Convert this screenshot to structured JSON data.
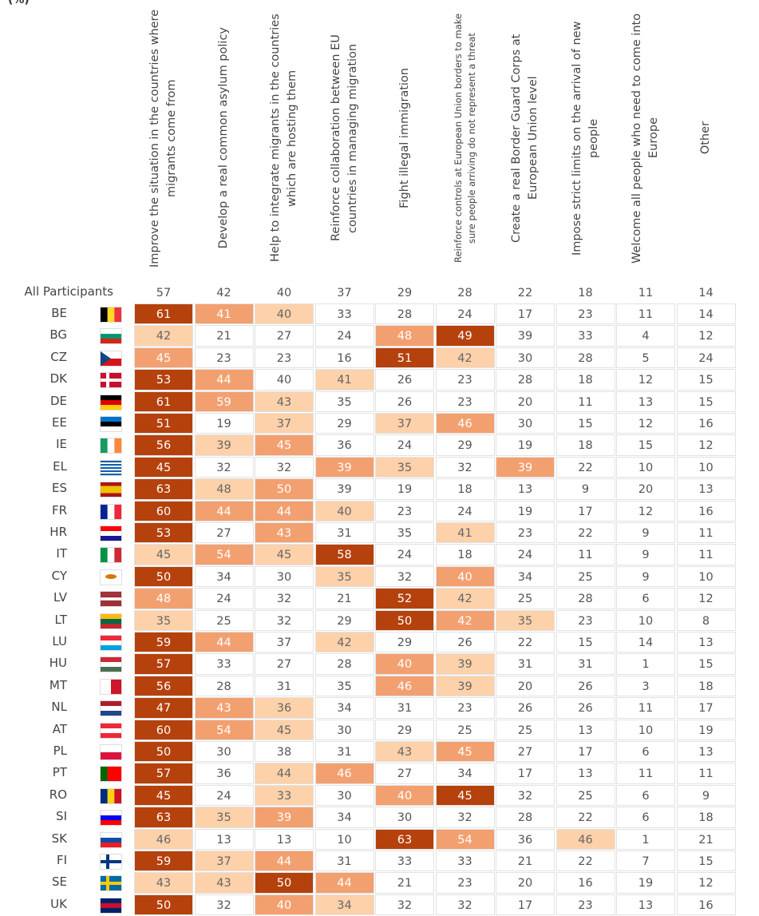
{
  "table": {
    "unit": "(%)",
    "columns": [
      "Improve the situation in the countries where migrants come from",
      "Develop a real common asylum policy",
      "Help to integrate migrants in the countries which are hosting them",
      "Reinforce collaboration between EU countries in managing migration",
      "Fight illegal immigration",
      "Reinforce controls at European Union borders to make sure people arriving do not represent a threat",
      "Create a real Border Guard Corps at European Union level",
      "Impose strict limits on the arrival of new people",
      "Welcome all people who need to come into Europe",
      "Other"
    ],
    "overall": {
      "label": "All Participants",
      "values": [
        57,
        42,
        40,
        37,
        29,
        28,
        22,
        18,
        11,
        14
      ]
    },
    "shades": [
      "#b5410c",
      "#f3a070",
      "#fdd1aa"
    ],
    "rows": [
      {
        "label": "BE",
        "values": [
          61,
          41,
          40,
          33,
          28,
          24,
          17,
          23,
          11,
          14
        ]
      },
      {
        "label": "BG",
        "values": [
          42,
          21,
          27,
          24,
          48,
          49,
          39,
          33,
          4,
          12
        ]
      },
      {
        "label": "CZ",
        "values": [
          45,
          23,
          23,
          16,
          51,
          42,
          30,
          28,
          5,
          24
        ]
      },
      {
        "label": "DK",
        "values": [
          53,
          44,
          40,
          41,
          26,
          23,
          28,
          18,
          12,
          15
        ]
      },
      {
        "label": "DE",
        "values": [
          61,
          59,
          43,
          35,
          26,
          23,
          20,
          11,
          13,
          15
        ]
      },
      {
        "label": "EE",
        "values": [
          51,
          19,
          37,
          29,
          37,
          46,
          30,
          15,
          12,
          16
        ]
      },
      {
        "label": "IE",
        "values": [
          56,
          39,
          45,
          36,
          24,
          29,
          19,
          18,
          15,
          12
        ]
      },
      {
        "label": "EL",
        "values": [
          45,
          32,
          32,
          39,
          35,
          32,
          39,
          22,
          10,
          10
        ]
      },
      {
        "label": "ES",
        "values": [
          63,
          48,
          50,
          39,
          19,
          18,
          13,
          9,
          20,
          13
        ]
      },
      {
        "label": "FR",
        "values": [
          60,
          44,
          44,
          40,
          23,
          24,
          19,
          17,
          12,
          16
        ]
      },
      {
        "label": "HR",
        "values": [
          53,
          27,
          43,
          31,
          35,
          41,
          23,
          22,
          9,
          11
        ]
      },
      {
        "label": "IT",
        "values": [
          45,
          54,
          45,
          58,
          24,
          18,
          24,
          11,
          9,
          11
        ]
      },
      {
        "label": "CY",
        "values": [
          50,
          34,
          30,
          35,
          32,
          40,
          34,
          25,
          9,
          10
        ]
      },
      {
        "label": "LV",
        "values": [
          48,
          24,
          32,
          21,
          52,
          42,
          25,
          28,
          6,
          12
        ]
      },
      {
        "label": "LT",
        "values": [
          35,
          25,
          32,
          29,
          50,
          42,
          35,
          23,
          10,
          8
        ]
      },
      {
        "label": "LU",
        "values": [
          59,
          44,
          37,
          42,
          29,
          26,
          22,
          15,
          14,
          13
        ]
      },
      {
        "label": "HU",
        "values": [
          57,
          33,
          27,
          28,
          40,
          39,
          31,
          31,
          1,
          15
        ]
      },
      {
        "label": "MT",
        "values": [
          56,
          28,
          31,
          35,
          46,
          39,
          20,
          26,
          3,
          18
        ]
      },
      {
        "label": "NL",
        "values": [
          47,
          43,
          36,
          34,
          31,
          23,
          26,
          26,
          11,
          17
        ]
      },
      {
        "label": "AT",
        "values": [
          60,
          54,
          45,
          30,
          29,
          25,
          25,
          13,
          10,
          19
        ]
      },
      {
        "label": "PL",
        "values": [
          50,
          30,
          38,
          31,
          43,
          45,
          27,
          17,
          6,
          13
        ]
      },
      {
        "label": "PT",
        "values": [
          57,
          36,
          44,
          46,
          27,
          34,
          17,
          13,
          11,
          11
        ]
      },
      {
        "label": "RO",
        "values": [
          45,
          24,
          33,
          30,
          40,
          45,
          32,
          25,
          6,
          9
        ]
      },
      {
        "label": "SI",
        "values": [
          63,
          35,
          39,
          34,
          30,
          32,
          28,
          22,
          6,
          18
        ]
      },
      {
        "label": "SK",
        "values": [
          46,
          13,
          13,
          10,
          63,
          54,
          36,
          46,
          1,
          21
        ]
      },
      {
        "label": "FI",
        "values": [
          59,
          37,
          44,
          31,
          33,
          33,
          21,
          22,
          7,
          15
        ]
      },
      {
        "label": "SE",
        "values": [
          43,
          43,
          50,
          44,
          21,
          23,
          20,
          16,
          19,
          12
        ]
      },
      {
        "label": "UK",
        "values": [
          50,
          32,
          40,
          34,
          32,
          32,
          17,
          23,
          13,
          16
        ]
      }
    ]
  }
}
